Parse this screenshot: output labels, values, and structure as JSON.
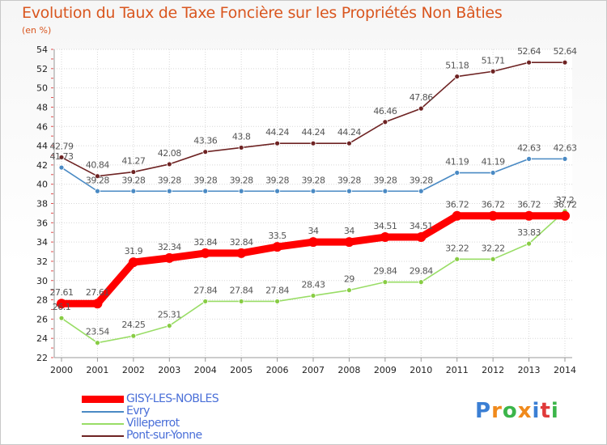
{
  "colors": {
    "title": "#d9561f",
    "grid": "#d7d7d7",
    "axis": "#999999",
    "legend_text": "#4a6fd8"
  },
  "logo": {
    "letters": [
      {
        "char": "P",
        "color": "#3b7fd4"
      },
      {
        "char": "r",
        "color": "#f08a1c"
      },
      {
        "char": "o",
        "color": "#3bb54a"
      },
      {
        "char": "x",
        "color": "#f08a1c"
      },
      {
        "char": "i",
        "color": "#3b7fd4"
      },
      {
        "char": "t",
        "color": "#e03a3a"
      },
      {
        "char": "i",
        "color": "#3bb54a"
      }
    ]
  },
  "chart_data": {
    "type": "line",
    "title": "Evolution du Taux de Taxe Foncière sur les Propriétés Non Bâties",
    "subtitle": "(en %)",
    "xlabel": "",
    "ylabel": "",
    "x": [
      "2000",
      "2001",
      "2002",
      "2003",
      "2004",
      "2005",
      "2006",
      "2007",
      "2008",
      "2009",
      "2010",
      "2011",
      "2012",
      "2013",
      "2014"
    ],
    "ylim": [
      22,
      54
    ],
    "yticks": [
      22,
      24,
      26,
      28,
      30,
      32,
      34,
      36,
      38,
      40,
      42,
      44,
      46,
      48,
      50,
      52,
      54
    ],
    "grid": true,
    "legend_position": "bottom-left",
    "series": [
      {
        "name": "GISY-LES-NOBLES",
        "color": "#ff0000",
        "marker_fill": "#ff0000",
        "thick": true,
        "values": [
          27.61,
          27.61,
          31.9,
          32.34,
          32.84,
          32.84,
          33.5,
          34,
          34,
          34.51,
          34.51,
          36.72,
          36.72,
          36.72,
          36.72
        ],
        "labels": [
          "27.61",
          "27.61",
          "31.9",
          "32.34",
          "32.84",
          "32.84",
          "33.5",
          "34",
          "34",
          "34.51",
          "34.51",
          "36.72",
          "36.72",
          "36.72",
          "36.72"
        ]
      },
      {
        "name": "Evry",
        "color": "#4a8ac4",
        "marker_fill": "#4a8ac4",
        "thick": false,
        "values": [
          41.73,
          39.28,
          39.28,
          39.28,
          39.28,
          39.28,
          39.28,
          39.28,
          39.28,
          39.28,
          39.28,
          41.19,
          41.19,
          42.63,
          42.63
        ],
        "labels": [
          "41.73",
          "39.28",
          "39.28",
          "39.28",
          "39.28",
          "39.28",
          "39.28",
          "39.28",
          "39.28",
          "39.28",
          "39.28",
          "41.19",
          "41.19",
          "42.63",
          "42.63"
        ]
      },
      {
        "name": "Villeperrot",
        "color": "#99dd66",
        "marker_fill": "#88cc44",
        "thick": false,
        "values": [
          26.1,
          23.54,
          24.25,
          25.31,
          27.84,
          27.84,
          27.84,
          28.43,
          29,
          29.84,
          29.84,
          32.22,
          32.22,
          33.83,
          37.2
        ],
        "labels": [
          "26.1",
          "23.54",
          "24.25",
          "25.31",
          "27.84",
          "27.84",
          "27.84",
          "28.43",
          "29",
          "29.84",
          "29.84",
          "32.22",
          "32.22",
          "33.83",
          "37.2"
        ]
      },
      {
        "name": "Pont-sur-Yonne",
        "color": "#6e2323",
        "marker_fill": "#6e2323",
        "thick": false,
        "values": [
          42.79,
          40.84,
          41.27,
          42.08,
          43.36,
          43.8,
          44.24,
          44.24,
          44.24,
          46.46,
          47.86,
          51.18,
          51.71,
          52.64,
          52.64
        ],
        "labels": [
          "42.79",
          "40.84",
          "41.27",
          "42.08",
          "43.36",
          "43.8",
          "44.24",
          "44.24",
          "44.24",
          "46.46",
          "47.86",
          "51.18",
          "51.71",
          "52.64",
          "52.64"
        ]
      }
    ]
  }
}
